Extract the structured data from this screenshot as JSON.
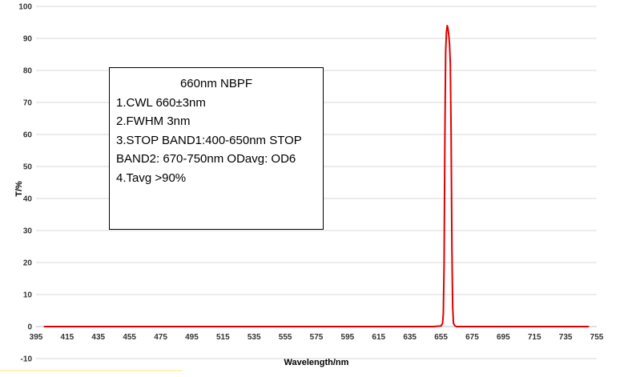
{
  "chart_data": {
    "type": "line",
    "xlabel": "Wavelength/nm",
    "ylabel": "T/%",
    "xlim": [
      395,
      755
    ],
    "ylim": [
      -10,
      100
    ],
    "x_ticks": [
      "395",
      "415",
      "435",
      "455",
      "475",
      "495",
      "515",
      "535",
      "555",
      "575",
      "595",
      "615",
      "635",
      "655",
      "675",
      "695",
      "715",
      "735",
      "755"
    ],
    "y_ticks": [
      "100",
      "90",
      "80",
      "70",
      "60",
      "50",
      "40",
      "30",
      "20",
      "10",
      "0",
      "-10"
    ],
    "grid": "horizontal",
    "line_color": "#e00000",
    "series": [
      {
        "x": [
          400,
          650,
          655,
          656,
          656.5,
          657,
          657.5,
          658,
          658.5,
          659,
          659.5,
          660,
          660.5,
          661,
          661.5,
          662,
          662.5,
          663,
          664,
          665,
          670,
          750
        ],
        "values": [
          0,
          0,
          0.2,
          1,
          4,
          20,
          60,
          86,
          92,
          94,
          93,
          91,
          88,
          82,
          60,
          25,
          6,
          1,
          0.2,
          0,
          0,
          0
        ]
      }
    ],
    "annotation": {
      "title": "660nm NBPF",
      "lines": [
        "1.CWL 660±3nm",
        "2.FWHM 3nm",
        "3.STOP BAND1:400-650nm  STOP",
        "BAND2: 670-750nm  ODavg:  OD6",
        "4.Tavg >90%"
      ]
    }
  }
}
